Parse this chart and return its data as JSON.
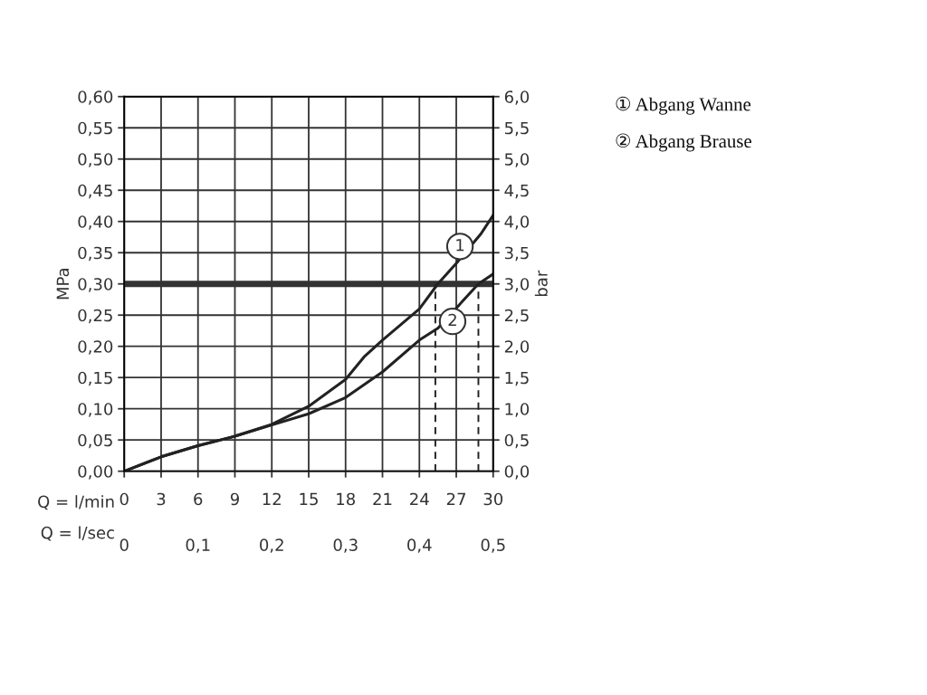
{
  "chart_data": {
    "type": "line",
    "xlabel": "Q = l/min",
    "x2label": "Q = l/sec",
    "ylabel": "MPa",
    "y2label": "bar",
    "xlim": [
      0,
      30
    ],
    "xticks": [
      0,
      3,
      6,
      9,
      12,
      15,
      18,
      21,
      24,
      27,
      30
    ],
    "x2lim": [
      0,
      0.5
    ],
    "x2ticks": [
      0,
      {
        "value": 0.1,
        "label": "0,1"
      },
      {
        "value": 0.2,
        "label": "0,2"
      },
      {
        "value": 0.3,
        "label": "0,3"
      },
      {
        "value": 0.4,
        "label": "0,4"
      },
      {
        "value": 0.5,
        "label": "0,5"
      }
    ],
    "ylim": [
      0,
      0.6
    ],
    "yticks": [
      {
        "value": 0,
        "label": "0,00"
      },
      {
        "value": 0.05,
        "label": "0,05"
      },
      {
        "value": 0.1,
        "label": "0,10"
      },
      {
        "value": 0.15,
        "label": "0,15"
      },
      {
        "value": 0.2,
        "label": "0,20"
      },
      {
        "value": 0.25,
        "label": "0,25"
      },
      {
        "value": 0.3,
        "label": "0,30"
      },
      {
        "value": 0.35,
        "label": "0,35"
      },
      {
        "value": 0.4,
        "label": "0,40"
      },
      {
        "value": 0.45,
        "label": "0,45"
      },
      {
        "value": 0.5,
        "label": "0,50"
      },
      {
        "value": 0.55,
        "label": "0,55"
      },
      {
        "value": 0.6,
        "label": "0,60"
      }
    ],
    "y2lim": [
      0,
      6
    ],
    "y2ticks": [
      {
        "value": 0,
        "label": "0,0"
      },
      {
        "value": 0.5,
        "label": "0,5"
      },
      {
        "value": 1,
        "label": "1,0"
      },
      {
        "value": 1.5,
        "label": "1,5"
      },
      {
        "value": 2,
        "label": "2,0"
      },
      {
        "value": 2.5,
        "label": "2,5"
      },
      {
        "value": 3,
        "label": "3,0"
      },
      {
        "value": 3.5,
        "label": "3,5"
      },
      {
        "value": 4,
        "label": "4,0"
      },
      {
        "value": 4.5,
        "label": "4,5"
      },
      {
        "value": 5,
        "label": "5,0"
      },
      {
        "value": 5.5,
        "label": "5,5"
      },
      {
        "value": 6,
        "label": "6,0"
      }
    ],
    "grid": true,
    "marker": "none",
    "series": [
      {
        "color": "#222222",
        "line_style": "solid",
        "x": [
          0,
          3,
          6,
          9,
          12,
          15,
          18,
          19.5,
          21,
          24,
          25.5,
          27,
          29,
          30
        ],
        "values": [
          0,
          0.023,
          0.041,
          0.056,
          0.075,
          0.104,
          0.147,
          0.183,
          0.21,
          0.26,
          0.3,
          0.333,
          0.38,
          0.41
        ]
      },
      {
        "color": "#222222",
        "line_style": "solid",
        "x": [
          0,
          3,
          6,
          9,
          12,
          15,
          18,
          21,
          24,
          25.5,
          28.8,
          30
        ],
        "values": [
          0,
          0.023,
          0.041,
          0.056,
          0.074,
          0.092,
          0.118,
          0.159,
          0.21,
          0.229,
          0.3,
          0.316
        ]
      },
      {
        "color": "#222222",
        "line_style": "dashed",
        "x": [
          25.3,
          25.3
        ],
        "values": [
          0,
          0.3
        ]
      },
      {
        "color": "#222222",
        "line_style": "dashed",
        "x": [
          28.8,
          28.8
        ],
        "values": [
          0,
          0.3
        ]
      }
    ],
    "ref_lines": [
      {
        "axis": "y",
        "value": 0.3,
        "color": "#333333"
      }
    ],
    "annotations": [
      {
        "text": "1",
        "x": 27.3,
        "y": 0.36
      },
      {
        "text": "2",
        "x": 26.7,
        "y": 0.24
      },
      "① Abgang Wanne",
      "② Abgang Brause"
    ]
  }
}
